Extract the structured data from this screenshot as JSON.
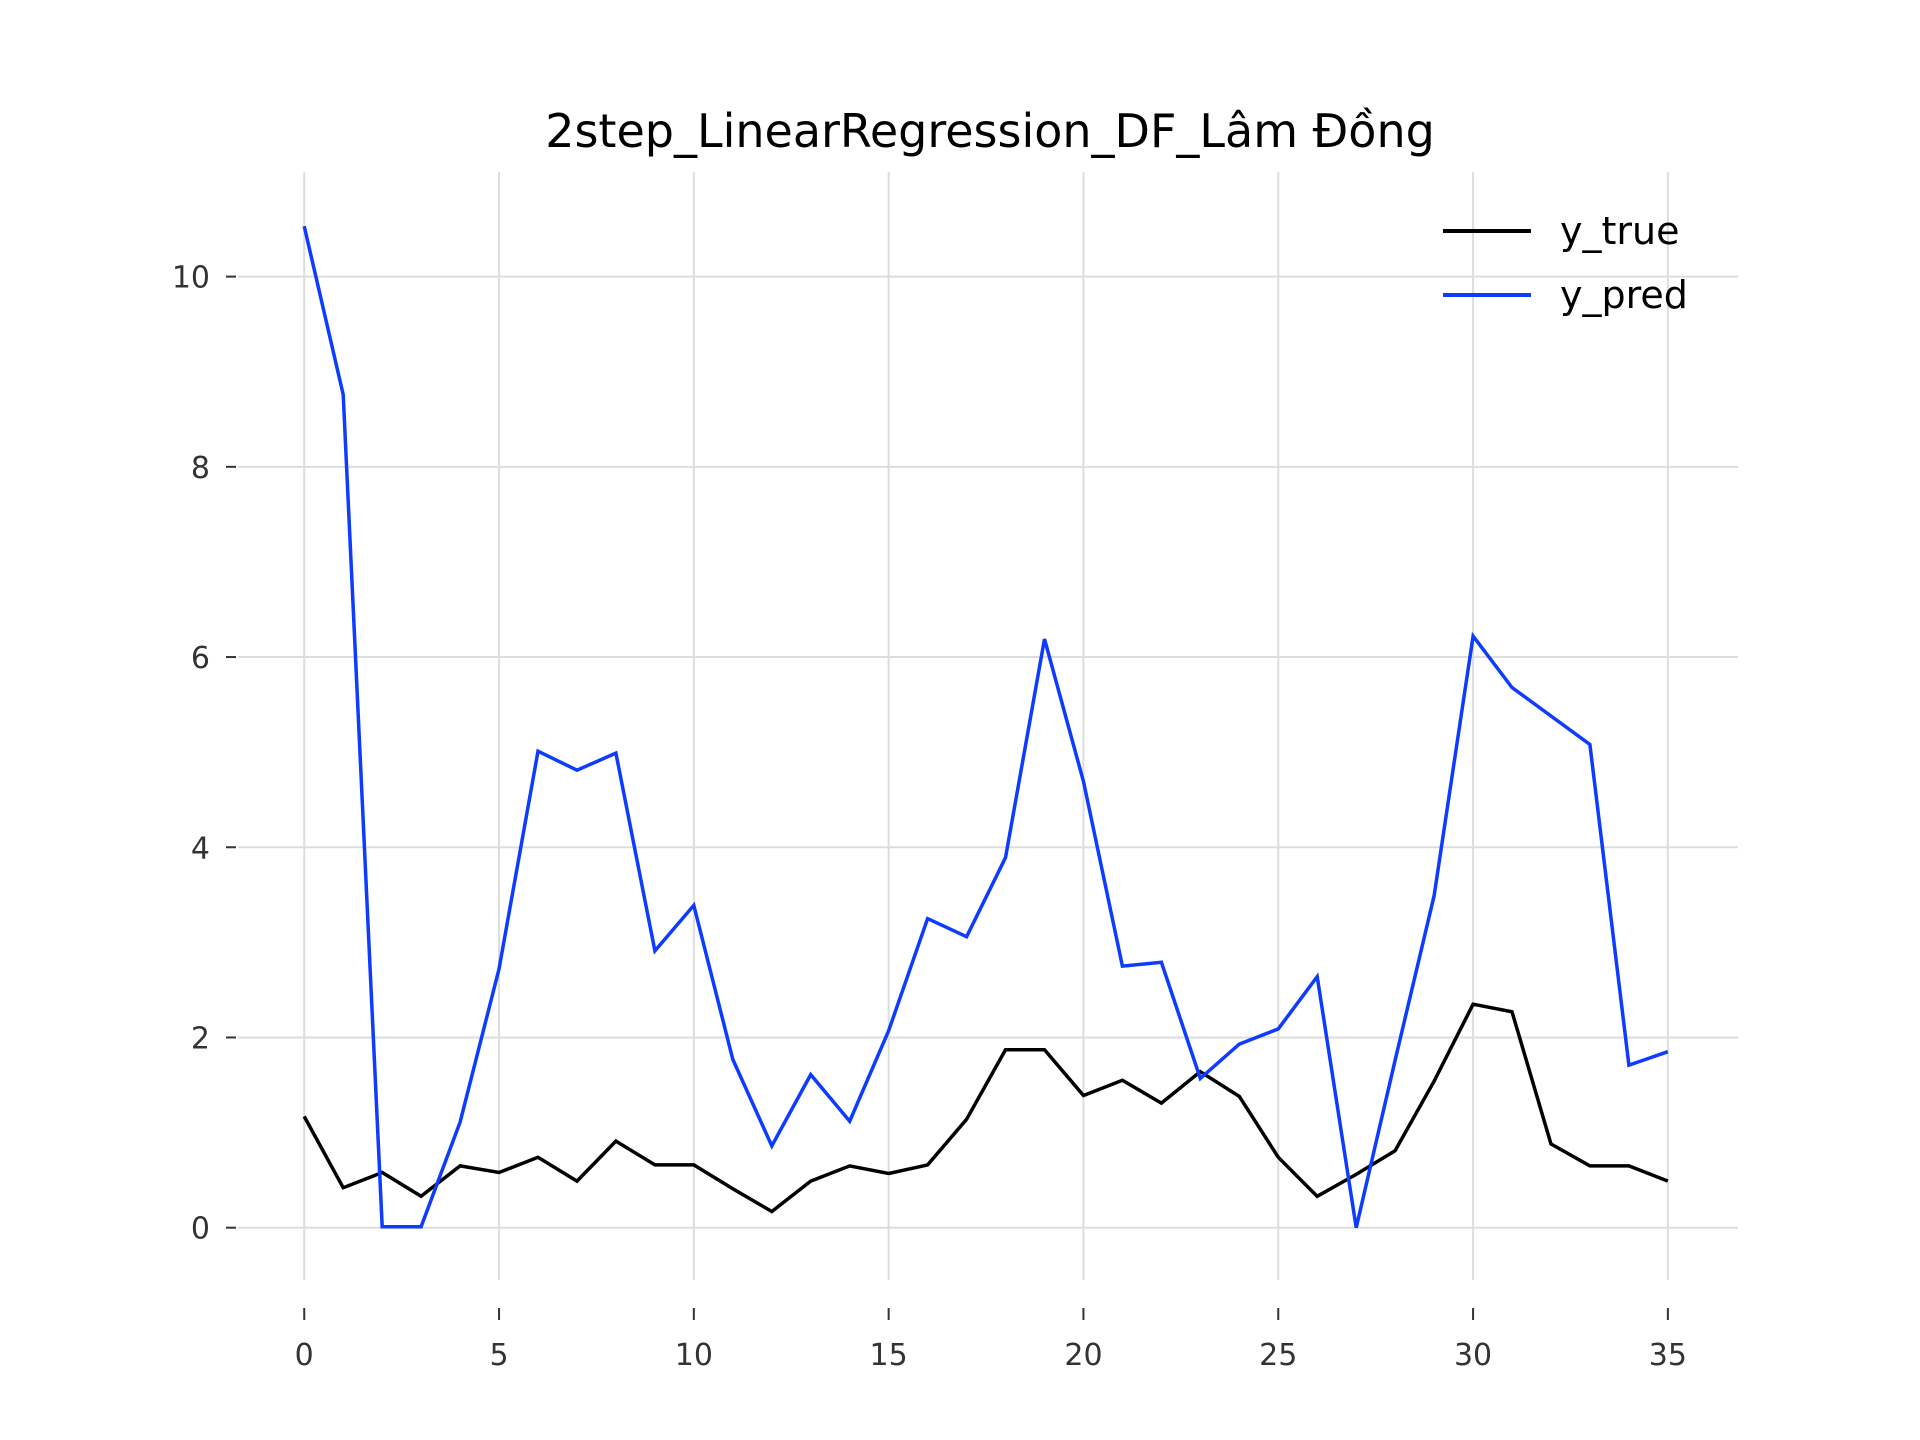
{
  "chart_data": {
    "type": "line",
    "title": "2step_LinearRegression_DF_Lâm Đồng",
    "xlabel": "",
    "ylabel": "",
    "xlim": [
      -1.7,
      36.8
    ],
    "ylim": [
      -0.55,
      11.1
    ],
    "xticks": [
      0,
      5,
      10,
      15,
      20,
      25,
      30,
      35
    ],
    "yticks": [
      0,
      2,
      4,
      6,
      8,
      10
    ],
    "grid": true,
    "legend_position": "top-right",
    "x": [
      0,
      1,
      2,
      3,
      4,
      5,
      6,
      7,
      8,
      9,
      10,
      11,
      12,
      13,
      14,
      15,
      16,
      17,
      18,
      19,
      20,
      21,
      22,
      23,
      24,
      25,
      26,
      27,
      28,
      29,
      30,
      31,
      32,
      33,
      34,
      35
    ],
    "series": [
      {
        "name": "y_true",
        "color": "#000000",
        "values": [
          1.17,
          0.42,
          0.58,
          0.33,
          0.65,
          0.58,
          0.74,
          0.49,
          0.91,
          0.66,
          0.66,
          0.41,
          0.17,
          0.49,
          0.65,
          0.57,
          0.66,
          1.14,
          1.87,
          1.87,
          1.39,
          1.55,
          1.31,
          1.64,
          1.38,
          0.74,
          0.33,
          0.56,
          0.81,
          1.54,
          2.35,
          2.27,
          0.88,
          0.65,
          0.65,
          0.49
        ]
      },
      {
        "name": "y_pred",
        "color": "#0d3bff",
        "values": [
          10.53,
          8.76,
          0.01,
          0.01,
          1.11,
          2.72,
          5.01,
          4.81,
          4.99,
          2.91,
          3.39,
          1.77,
          0.86,
          1.61,
          1.12,
          2.07,
          3.25,
          3.06,
          3.89,
          6.19,
          4.69,
          2.75,
          2.79,
          1.57,
          1.93,
          2.09,
          2.64,
          0.0,
          1.76,
          3.49,
          6.22,
          5.68,
          5.38,
          5.08,
          1.71,
          1.85
        ]
      }
    ]
  }
}
